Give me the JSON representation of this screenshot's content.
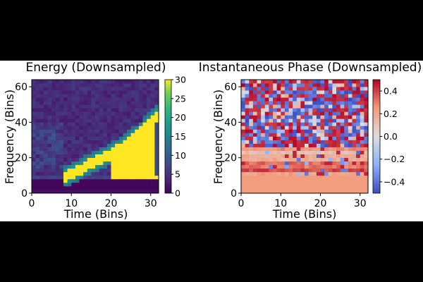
{
  "chart_data": [
    {
      "type": "heatmap",
      "title": "Energy (Downsampled)",
      "xlabel": "Time (Bins)",
      "ylabel": "Frequency (Bins)",
      "xlim": [
        0,
        32
      ],
      "ylim": [
        0,
        64
      ],
      "xticks": [
        "0",
        "10",
        "20",
        "30"
      ],
      "yticks": [
        "0",
        "20",
        "40",
        "60"
      ],
      "grid": false,
      "colormap": "viridis",
      "colorbar": {
        "range": [
          0,
          30
        ],
        "ticks": [
          "0",
          "5",
          "10",
          "15",
          "20",
          "25",
          "30"
        ]
      },
      "description_of_values": "low energy everywhere, a bright yellow chirp rising from ~freq 10 at time 10 to ~freq 36 at time 30; dark row at freq 2-7"
    },
    {
      "type": "heatmap",
      "title": "Instantaneous Phase (Downsampled)",
      "xlabel": "Time (Bins)",
      "ylabel": "Frequency (Bins)",
      "xlim": [
        0,
        32
      ],
      "ylim": [
        0,
        64
      ],
      "xticks": [
        "0",
        "10",
        "20",
        "30"
      ],
      "yticks": [
        "0",
        "20",
        "40",
        "60"
      ],
      "grid": false,
      "colormap": "coolwarm",
      "colorbar": {
        "range": [
          -0.5,
          0.5
        ],
        "ticks": [
          "0.4",
          "0.2",
          "0.0",
          "−0.2",
          "−0.4"
        ]
      },
      "description_of_values": "uniform salmon (~0.25) below freq ~10, horizontal banding up to ~25, random red/blue noise above ~25"
    }
  ]
}
